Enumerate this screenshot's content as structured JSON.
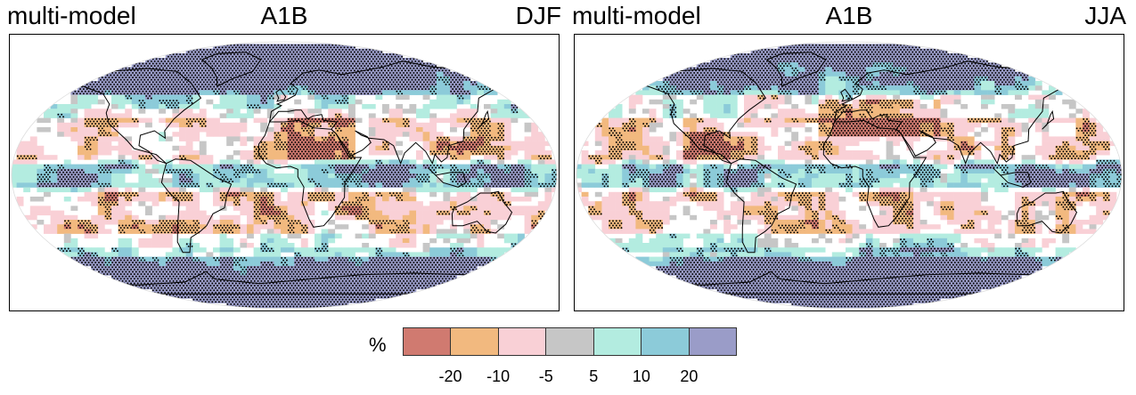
{
  "panels": [
    {
      "model_label": "multi-model",
      "scenario_label": "A1B",
      "season_label": "DJF"
    },
    {
      "model_label": "multi-model",
      "scenario_label": "A1B",
      "season_label": "JJA"
    }
  ],
  "legend": {
    "unit": "%",
    "colors": [
      "#d07a70",
      "#f2b97f",
      "#f9d0d6",
      "#c6c6c6",
      "#b3ece0",
      "#8ccbd9",
      "#9a9cc8"
    ],
    "ticks": [
      "-20",
      "-10",
      "-5",
      "5",
      "10",
      "20"
    ]
  },
  "colors": {
    "coastline": "#000000",
    "stipple": "#000000",
    "frame": "#000000"
  }
}
